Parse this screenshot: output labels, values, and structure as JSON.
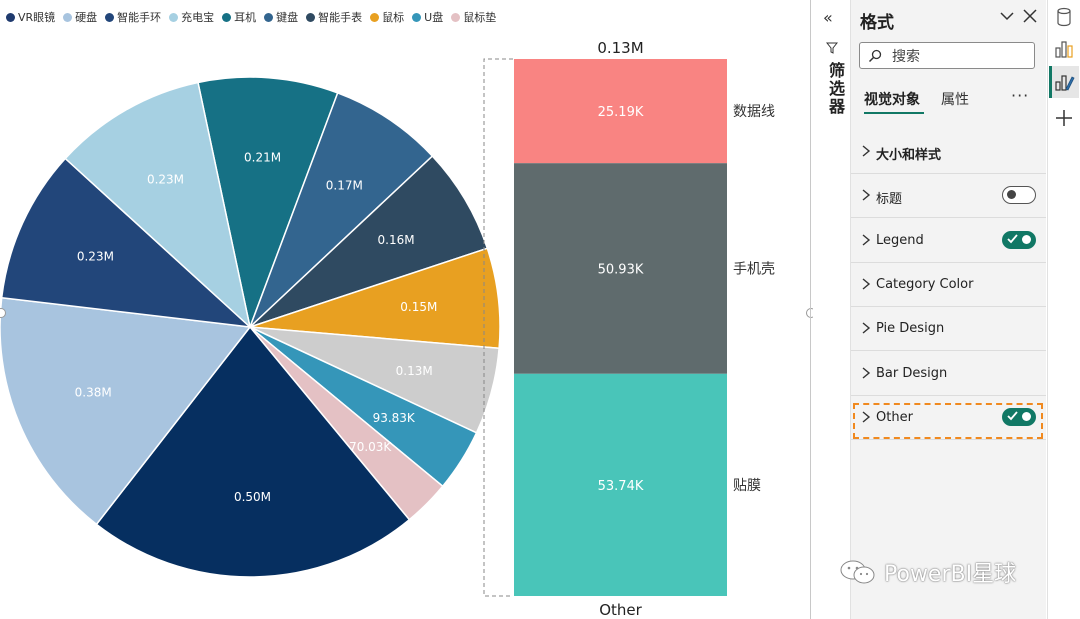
{
  "legend": [
    {
      "label": "VR眼镜",
      "color": "#1f3a6e"
    },
    {
      "label": "硬盘",
      "color": "#a8c4df"
    },
    {
      "label": "智能手环",
      "color": "#22467a"
    },
    {
      "label": "充电宝",
      "color": "#a6d0e2"
    },
    {
      "label": "耳机",
      "color": "#167185"
    },
    {
      "label": "键盘",
      "color": "#33658f"
    },
    {
      "label": "智能手表",
      "color": "#2f4a61"
    },
    {
      "label": "鼠标",
      "color": "#e8a021"
    },
    {
      "label": "U盘",
      "color": "#3596b9"
    },
    {
      "label": "鼠标垫",
      "color": "#e4c1c4"
    }
  ],
  "chart_data": [
    {
      "type": "pie",
      "title": "",
      "slices": [
        {
          "value": 0.21,
          "label": "0.21M",
          "color": "#167185"
        },
        {
          "value": 0.17,
          "label": "0.17M",
          "color": "#33658f"
        },
        {
          "value": 0.16,
          "label": "0.16M",
          "color": "#2f4a61"
        },
        {
          "value": 0.15,
          "label": "0.15M",
          "color": "#e8a021"
        },
        {
          "value": 0.13,
          "label": "0.13M",
          "color": "#cdcdcd"
        },
        {
          "value": 0.09383,
          "label": "93.83K",
          "color": "#3596b9"
        },
        {
          "value": 0.07003,
          "label": "70.03K",
          "color": "#e4c1c4"
        },
        {
          "value": 0.5,
          "label": "0.50M",
          "color": "#062f60"
        },
        {
          "value": 0.38,
          "label": "0.38M",
          "color": "#a8c4df"
        },
        {
          "value": 0.23,
          "label": "0.23M",
          "color": "#22467a"
        },
        {
          "value": 0.23,
          "label": "0.23M",
          "color": "#a6d0e2"
        }
      ]
    },
    {
      "type": "bar",
      "stacked": true,
      "title": "0.13M",
      "category_label": "Other",
      "segments": [
        {
          "name": "数据线",
          "value": 25.19,
          "label": "25.19K",
          "color": "#f98482"
        },
        {
          "name": "手机壳",
          "value": 50.93,
          "label": "50.93K",
          "color": "#5f6b6d"
        },
        {
          "name": "贴膜",
          "value": 53.74,
          "label": "53.74K",
          "color": "#49c5b9"
        }
      ]
    }
  ],
  "filter_pane": {
    "label": "筛选器"
  },
  "format_pane": {
    "title": "格式",
    "search_placeholder": "搜索",
    "tabs": [
      "视觉对象",
      "属性"
    ],
    "more": "···",
    "sections": [
      {
        "label": "大小和样式",
        "bold": true,
        "toggle": null
      },
      {
        "label": "标题",
        "bold": false,
        "toggle": "off"
      },
      {
        "label": "Legend",
        "bold": false,
        "toggle": "on"
      },
      {
        "label": "Category Color",
        "bold": false,
        "toggle": null
      },
      {
        "label": "Pie Design",
        "bold": false,
        "toggle": null
      },
      {
        "label": "Bar Design",
        "bold": false,
        "toggle": null
      },
      {
        "label": "Other",
        "bold": false,
        "toggle": "on"
      }
    ]
  },
  "watermark": "PowerBI星球"
}
